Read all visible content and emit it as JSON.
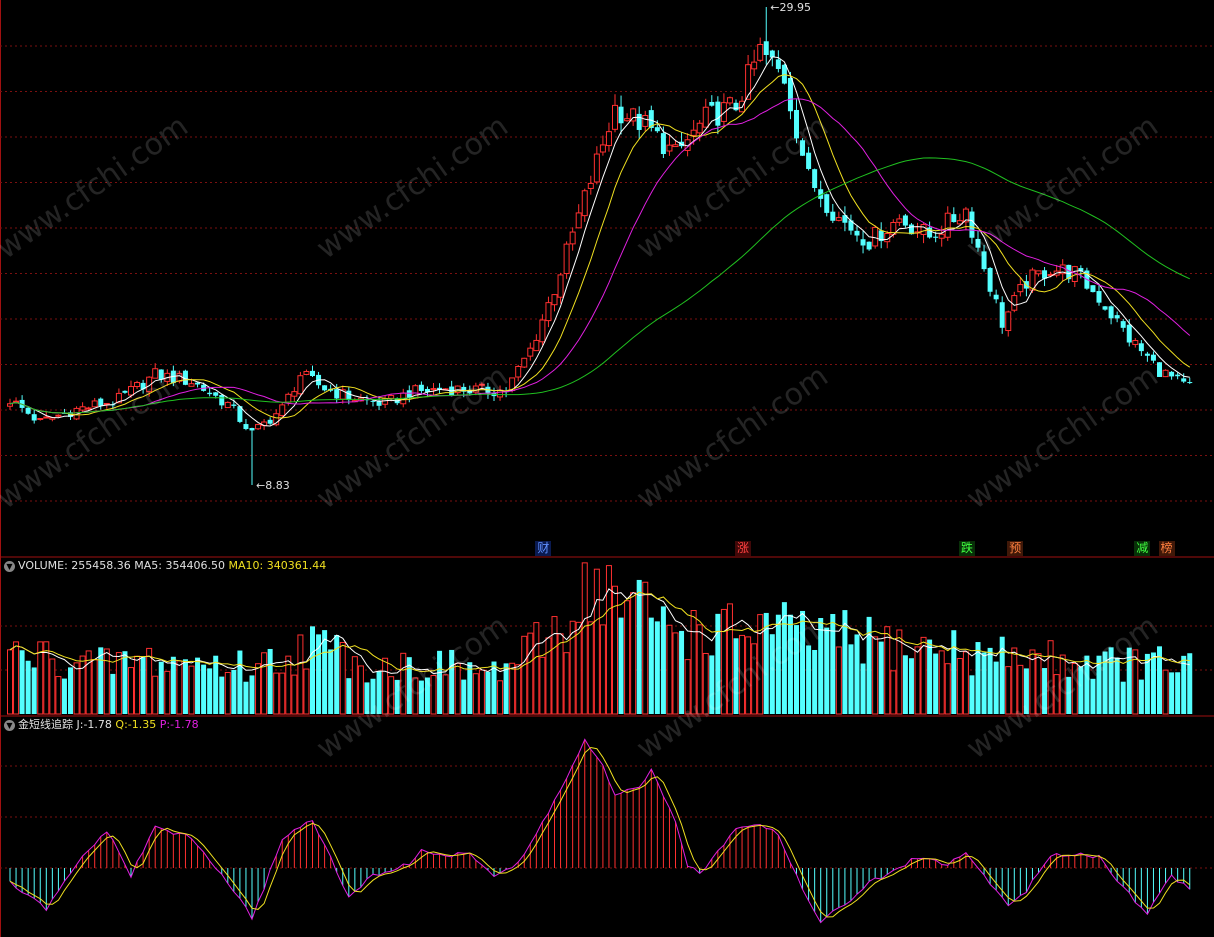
{
  "watermark": "www.cfchi.com",
  "colors": {
    "background": "#000000",
    "up": "#ff3030",
    "down": "#54ffff",
    "grid": "#7a1010",
    "panel_border": "#a01010",
    "ma_white": "#ffffff",
    "ma_yellow": "#f0e020",
    "ma_magenta": "#e020e0",
    "ma_green": "#20c020",
    "vol_ma5": "#ffffff",
    "vol_ma10": "#f0e020",
    "ind_j": "#ffffff",
    "ind_q": "#f0e020",
    "ind_p": "#e020e0"
  },
  "price_panel": {
    "high_label": "29.95",
    "low_label": "8.83",
    "events": [
      {
        "text": "财",
        "color": "#6090ff",
        "bg": "#0a1a50",
        "bar": 88
      },
      {
        "text": "涨",
        "color": "#ff4040",
        "bg": "#400808",
        "bar": 121
      },
      {
        "text": "跌",
        "color": "#40ff40",
        "bg": "#083008",
        "bar": 158
      },
      {
        "text": "预",
        "color": "#ff8040",
        "bg": "#401808",
        "bar": 166
      },
      {
        "text": "减",
        "color": "#40ff40",
        "bg": "#083008",
        "bar": 187
      },
      {
        "text": "榜",
        "color": "#ff8040",
        "bg": "#401808",
        "bar": 191
      }
    ]
  },
  "volume_panel": {
    "title": "VOLUME:",
    "value": "255458.36",
    "ma5_label": "MA5:",
    "ma5_value": "354406.50",
    "ma10_label": "MA10:",
    "ma10_value": "340361.44"
  },
  "indicator_panel": {
    "name": "金短线追踪",
    "j_label": "J:",
    "j_value": "-1.78",
    "q_label": "Q:",
    "q_value": "-1.35",
    "p_label": "P:",
    "p_value": "-1.78"
  },
  "chart_data": {
    "type": "candlestick",
    "price_range": [
      8.83,
      29.95
    ],
    "high": 29.95,
    "low": 8.83,
    "close_keypoints": [
      [
        0,
        12.6
      ],
      [
        5,
        11.6
      ],
      [
        10,
        12.1
      ],
      [
        18,
        12.6
      ],
      [
        24,
        13.7
      ],
      [
        30,
        13.4
      ],
      [
        36,
        12.4
      ],
      [
        40,
        11.1
      ],
      [
        45,
        12.2
      ],
      [
        48,
        13.7
      ],
      [
        52,
        13.1
      ],
      [
        56,
        12.7
      ],
      [
        62,
        12.4
      ],
      [
        66,
        12.9
      ],
      [
        72,
        13.1
      ],
      [
        78,
        13.0
      ],
      [
        82,
        13.0
      ],
      [
        86,
        14.8
      ],
      [
        90,
        17.5
      ],
      [
        95,
        21.5
      ],
      [
        100,
        25.5
      ],
      [
        105,
        24.7
      ],
      [
        110,
        23.4
      ],
      [
        115,
        25.0
      ],
      [
        120,
        25.6
      ],
      [
        124,
        28.0
      ],
      [
        128,
        26.8
      ],
      [
        132,
        22.4
      ],
      [
        137,
        20.6
      ],
      [
        142,
        19.6
      ],
      [
        147,
        20.6
      ],
      [
        152,
        19.8
      ],
      [
        158,
        21.0
      ],
      [
        160,
        19.3
      ],
      [
        164,
        16.0
      ],
      [
        168,
        17.8
      ],
      [
        172,
        18.4
      ],
      [
        176,
        18.2
      ],
      [
        180,
        17.1
      ],
      [
        185,
        15.3
      ],
      [
        190,
        13.9
      ],
      [
        194,
        13.2
      ]
    ],
    "volume_keypoints": [
      [
        0,
        240000
      ],
      [
        8,
        225000
      ],
      [
        15,
        200000
      ],
      [
        20,
        215000
      ],
      [
        30,
        210000
      ],
      [
        40,
        190000
      ],
      [
        45,
        230000
      ],
      [
        50,
        285000
      ],
      [
        55,
        240000
      ],
      [
        60,
        195000
      ],
      [
        70,
        200000
      ],
      [
        80,
        165000
      ],
      [
        85,
        230000
      ],
      [
        88,
        295000
      ],
      [
        92,
        380000
      ],
      [
        96,
        545000
      ],
      [
        100,
        460000
      ],
      [
        104,
        430000
      ],
      [
        108,
        370000
      ],
      [
        112,
        340000
      ],
      [
        120,
        330000
      ],
      [
        125,
        360000
      ],
      [
        130,
        320000
      ],
      [
        140,
        300000
      ],
      [
        145,
        280000
      ],
      [
        150,
        270000
      ],
      [
        155,
        265000
      ],
      [
        160,
        240000
      ],
      [
        170,
        230000
      ],
      [
        180,
        210000
      ],
      [
        194,
        200000
      ]
    ],
    "indicator_keypoints": [
      [
        0,
        -20
      ],
      [
        6,
        -55
      ],
      [
        12,
        15
      ],
      [
        16,
        50
      ],
      [
        20,
        -10
      ],
      [
        24,
        55
      ],
      [
        30,
        40
      ],
      [
        38,
        -40
      ],
      [
        40,
        -70
      ],
      [
        45,
        40
      ],
      [
        50,
        65
      ],
      [
        56,
        -40
      ],
      [
        60,
        -10
      ],
      [
        66,
        5
      ],
      [
        68,
        25
      ],
      [
        72,
        15
      ],
      [
        76,
        20
      ],
      [
        80,
        -10
      ],
      [
        84,
        5
      ],
      [
        88,
        60
      ],
      [
        92,
        120
      ],
      [
        95,
        170
      ],
      [
        98,
        135
      ],
      [
        100,
        95
      ],
      [
        104,
        110
      ],
      [
        106,
        130
      ],
      [
        110,
        60
      ],
      [
        112,
        5
      ],
      [
        114,
        -10
      ],
      [
        120,
        55
      ],
      [
        124,
        60
      ],
      [
        127,
        45
      ],
      [
        130,
        -10
      ],
      [
        132,
        -45
      ],
      [
        134,
        -70
      ],
      [
        138,
        -50
      ],
      [
        142,
        -20
      ],
      [
        146,
        -5
      ],
      [
        150,
        15
      ],
      [
        155,
        5
      ],
      [
        158,
        20
      ],
      [
        162,
        -20
      ],
      [
        165,
        -50
      ],
      [
        168,
        -30
      ],
      [
        172,
        15
      ],
      [
        176,
        20
      ],
      [
        180,
        15
      ],
      [
        185,
        -35
      ],
      [
        188,
        -60
      ],
      [
        192,
        -10
      ],
      [
        195,
        -28
      ]
    ]
  }
}
